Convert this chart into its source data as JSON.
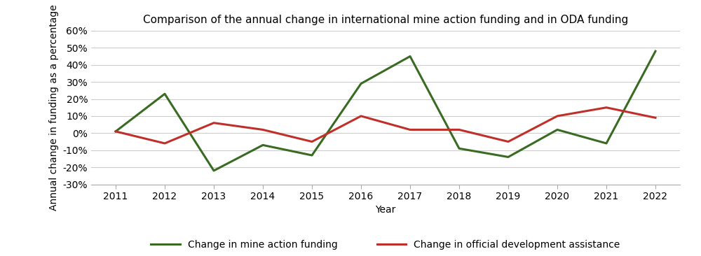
{
  "title": "Comparison of the annual change in international mine action funding and in ODA funding",
  "xlabel": "Year",
  "ylabel": "Annual change in funding as a percentage",
  "years": [
    2011,
    2012,
    2013,
    2014,
    2015,
    2016,
    2017,
    2018,
    2019,
    2020,
    2021,
    2022
  ],
  "mine_action": [
    1,
    23,
    -22,
    -7,
    -13,
    29,
    45,
    -9,
    -14,
    2,
    -6,
    48
  ],
  "oda": [
    1,
    -6,
    6,
    2,
    -5,
    10,
    2,
    2,
    -5,
    10,
    15,
    9
  ],
  "mine_action_color": "#3a6b22",
  "oda_color": "#c0302b",
  "mine_action_label": "Change in mine action funding",
  "oda_label": "Change in official development assistance",
  "ylim": [
    -30,
    60
  ],
  "yticks": [
    -30,
    -20,
    -10,
    0,
    10,
    20,
    30,
    40,
    50,
    60
  ],
  "background_color": "#ffffff",
  "grid_color": "#cccccc",
  "line_width": 2.2,
  "marker": "None",
  "marker_size": 0,
  "title_fontsize": 11,
  "axis_label_fontsize": 10,
  "tick_fontsize": 10
}
